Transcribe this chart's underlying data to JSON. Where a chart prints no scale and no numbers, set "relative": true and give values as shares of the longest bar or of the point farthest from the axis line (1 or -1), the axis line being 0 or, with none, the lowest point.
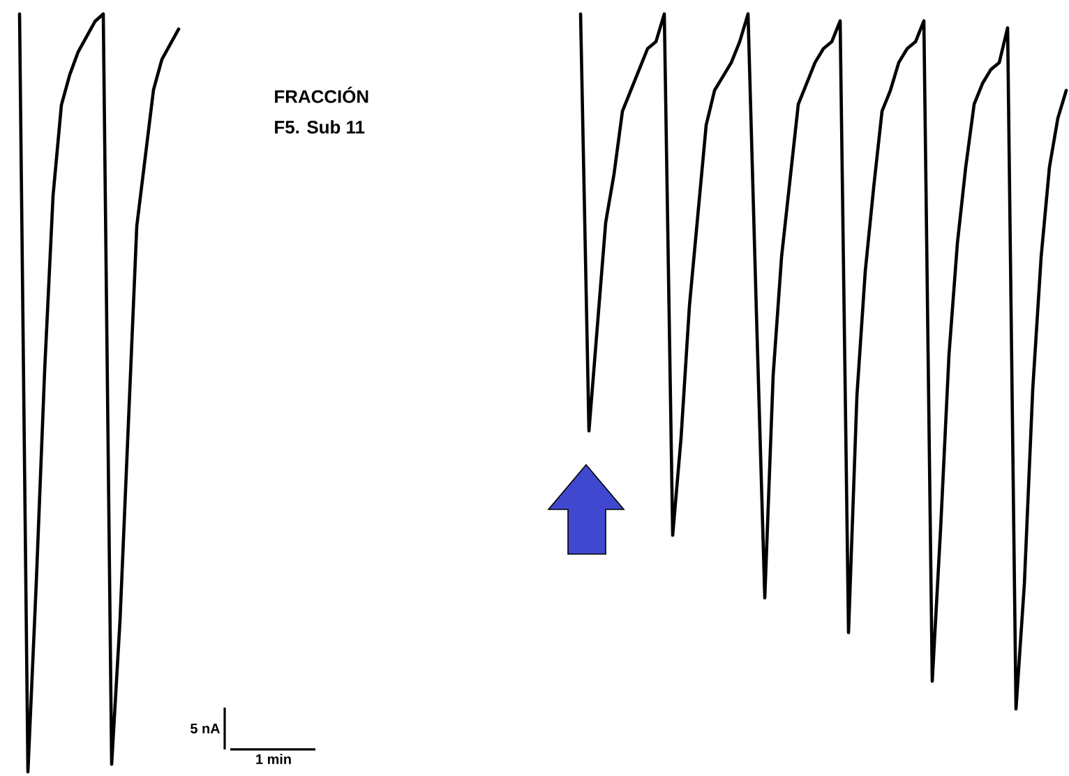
{
  "chart_data": [
    {
      "type": "line",
      "relative": true,
      "annotations": [
        "5 nA",
        "1 min"
      ],
      "categories": [
        null,
        null,
        null,
        null,
        null,
        null,
        null,
        null,
        null,
        null,
        null,
        null,
        null,
        null,
        null,
        null,
        null,
        null,
        null,
        null
      ],
      "series": [
        {
          "color": "#000000",
          "values": [
            1.0,
            0.0,
            0.25,
            0.53,
            0.76,
            0.88,
            0.92,
            0.95,
            0.97,
            0.99,
            1.0,
            0.01,
            0.2,
            0.46,
            0.72,
            0.81,
            0.9,
            0.94,
            0.96,
            0.98
          ]
        }
      ]
    },
    {
      "type": "line",
      "relative": true,
      "categories": [
        null,
        null,
        null,
        null,
        null,
        null,
        null,
        null,
        null,
        null,
        null,
        null,
        null,
        null,
        null,
        null,
        null,
        null,
        null,
        null,
        null,
        null,
        null,
        null,
        null,
        null,
        null,
        null,
        null,
        null,
        null,
        null,
        null,
        null,
        null,
        null,
        null,
        null,
        null,
        null,
        null,
        null,
        null,
        null,
        null,
        null,
        null,
        null,
        null,
        null,
        null,
        null,
        null,
        null,
        null,
        null,
        null,
        null,
        null
      ],
      "series": [
        {
          "color": "#000000",
          "values": [
            1.0,
            0.4,
            0.55,
            0.7,
            0.77,
            0.86,
            0.89,
            0.92,
            0.95,
            0.96,
            1.0,
            0.25,
            0.39,
            0.58,
            0.71,
            0.84,
            0.89,
            0.91,
            0.93,
            0.96,
            1.0,
            0.57,
            0.16,
            0.48,
            0.65,
            0.76,
            0.87,
            0.9,
            0.93,
            0.95,
            0.96,
            0.99,
            0.11,
            0.45,
            0.63,
            0.75,
            0.86,
            0.89,
            0.93,
            0.95,
            0.96,
            0.99,
            0.04,
            0.26,
            0.51,
            0.67,
            0.78,
            0.87,
            0.9,
            0.92,
            0.93,
            0.98,
            0.0,
            0.18,
            0.46,
            0.65,
            0.78,
            0.85,
            0.89
          ]
        }
      ]
    },
    {
      "type": "other",
      "title": "FRACCIÓN",
      "subtitle": "F5. Sub 11"
    }
  ]
}
